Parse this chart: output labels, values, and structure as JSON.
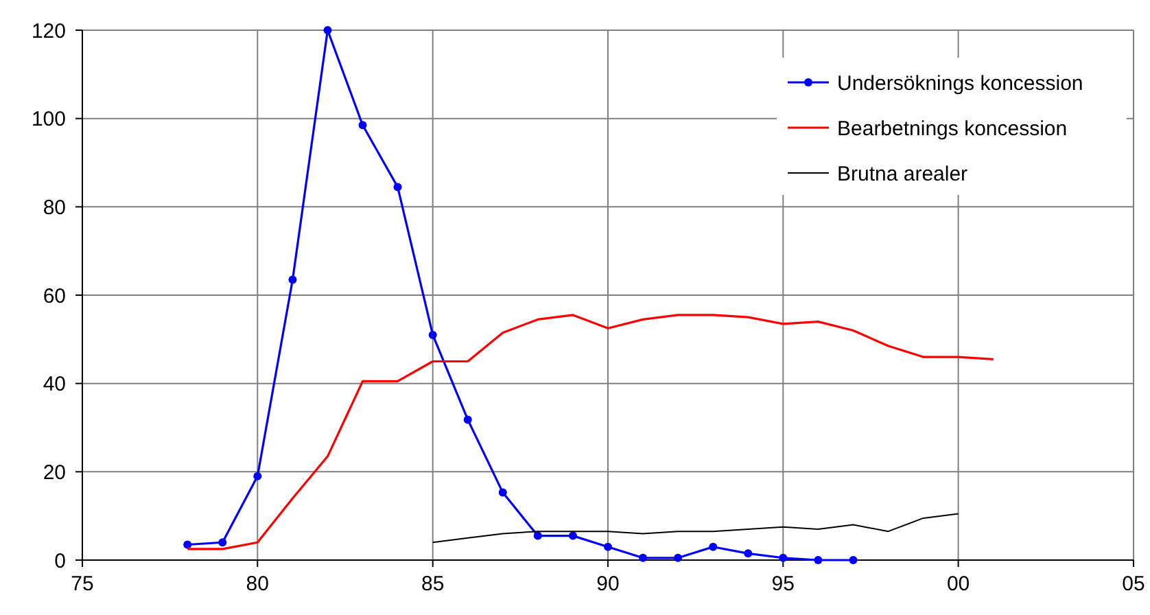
{
  "chart_data": {
    "type": "line",
    "xlim": [
      "1975",
      "2005"
    ],
    "ylim": [
      0,
      120
    ],
    "xticks": [
      {
        "value": "1975",
        "label": "75"
      },
      {
        "value": "1980",
        "label": "80"
      },
      {
        "value": "1985",
        "label": "85"
      },
      {
        "value": "1990",
        "label": "90"
      },
      {
        "value": "1995",
        "label": "95"
      },
      {
        "value": "2000",
        "label": "00"
      },
      {
        "value": "2005",
        "label": "05"
      }
    ],
    "yticks": [
      0,
      20,
      40,
      60,
      80,
      100,
      120
    ],
    "grid": true,
    "legend": "top right",
    "line_style": "solid",
    "series": [
      {
        "name": "Undersöknings koncession",
        "color": "#0000ff",
        "marker": "circle",
        "x": [
          "1978",
          "1979",
          "1980",
          "1981",
          "1982",
          "1983",
          "1984",
          "1985",
          "1986",
          "1987",
          "1988",
          "1989",
          "1990",
          "1991",
          "1992",
          "1993",
          "1994",
          "1995",
          "1996",
          "1997"
        ],
        "values": [
          3.5,
          4,
          19,
          63.5,
          120,
          98.5,
          84.5,
          51,
          31.8,
          15.3,
          5.5,
          5.5,
          3,
          0.5,
          0.5,
          3,
          1.5,
          0.5,
          0,
          0
        ]
      },
      {
        "name": "Bearbetnings koncession",
        "color": "#ff0000",
        "marker": "none",
        "x": [
          "1978",
          "1979",
          "1980",
          "1981",
          "1982",
          "1983",
          "1984",
          "1985",
          "1986",
          "1987",
          "1988",
          "1989",
          "1990",
          "1991",
          "1992",
          "1993",
          "1994",
          "1995",
          "1996",
          "1997",
          "1998",
          "1999",
          "2000",
          "2001"
        ],
        "values": [
          2.5,
          2.5,
          4,
          14,
          23.5,
          40.5,
          40.5,
          45,
          45,
          51.5,
          54.5,
          55.5,
          52.5,
          54.5,
          55.5,
          55.5,
          55,
          53.5,
          54,
          52,
          48.5,
          46,
          46,
          45.5
        ]
      },
      {
        "name": "Brutna arealer",
        "color": "#000000",
        "marker": "none",
        "x": [
          "1985",
          "1986",
          "1987",
          "1988",
          "1989",
          "1990",
          "1991",
          "1992",
          "1993",
          "1994",
          "1995",
          "1996",
          "1997",
          "1998",
          "1999",
          "2000"
        ],
        "values": [
          4,
          5,
          6,
          6.5,
          6.5,
          6.5,
          6,
          6.5,
          6.5,
          7,
          7.5,
          7,
          8,
          6.5,
          9.5,
          10.5
        ]
      }
    ]
  }
}
